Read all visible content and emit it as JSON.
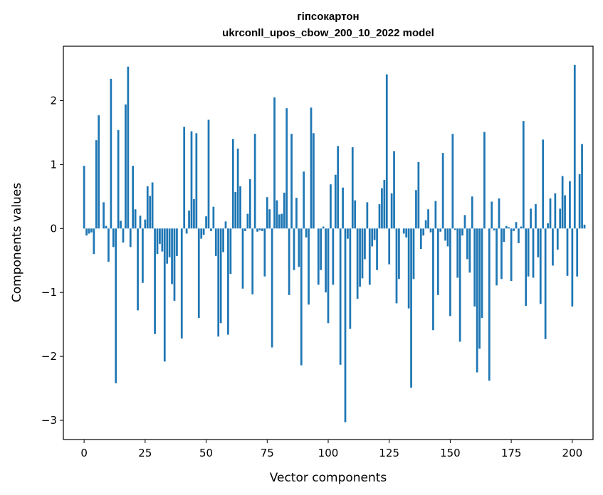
{
  "chart_data": {
    "type": "bar",
    "title": "гіпсокартон",
    "subtitle": "ukrconll_upos_cbow_200_10_2022 model",
    "xlabel": "Vector components",
    "ylabel": "Components values",
    "xlim": [
      -8.5,
      208.5
    ],
    "ylim": [
      -3.3,
      2.85
    ],
    "xticks": [
      0,
      25,
      50,
      75,
      100,
      125,
      150,
      175,
      200
    ],
    "yticks": [
      -3,
      -2,
      -1,
      0,
      1,
      2
    ],
    "ytick_labels": [
      "−3",
      "−2",
      "−1",
      "0",
      "1",
      "2"
    ],
    "grid": false,
    "color": "#1f77b4",
    "values": [
      0.98,
      -0.11,
      -0.08,
      -0.06,
      -0.4,
      1.38,
      1.77,
      0.0,
      0.41,
      0.04,
      -0.52,
      2.34,
      -0.29,
      -2.42,
      1.54,
      0.12,
      -0.22,
      1.94,
      2.53,
      -0.29,
      0.98,
      0.3,
      -1.28,
      0.2,
      -0.85,
      0.14,
      0.66,
      0.51,
      0.72,
      -1.65,
      -0.4,
      -0.24,
      -0.36,
      -2.08,
      -0.55,
      -0.45,
      -0.87,
      -1.13,
      -0.43,
      0.0,
      -1.72,
      1.59,
      -0.08,
      0.28,
      1.52,
      0.46,
      1.49,
      -1.4,
      -0.16,
      -0.1,
      0.19,
      1.7,
      -0.04,
      0.34,
      -0.43,
      -1.69,
      -1.48,
      -0.37,
      0.11,
      -1.66,
      -0.71,
      1.4,
      0.57,
      1.25,
      0.66,
      -0.94,
      -0.04,
      0.23,
      0.77,
      -1.03,
      1.48,
      -0.05,
      -0.03,
      -0.04,
      -0.75,
      0.49,
      0.3,
      -1.86,
      2.05,
      0.44,
      0.22,
      0.23,
      0.56,
      1.88,
      -1.04,
      1.48,
      -0.65,
      0.48,
      -0.6,
      -2.14,
      0.89,
      -0.14,
      -1.19,
      1.89,
      1.49,
      0.0,
      -0.88,
      -0.65,
      0.03,
      -1.0,
      -1.48,
      0.69,
      -0.88,
      0.84,
      1.29,
      -2.13,
      0.64,
      -3.03,
      -0.16,
      -1.57,
      1.27,
      0.44,
      -1.1,
      -0.91,
      -0.78,
      -0.48,
      0.41,
      -0.88,
      -0.28,
      -0.18,
      -0.65,
      0.38,
      0.63,
      0.76,
      2.41,
      -0.56,
      0.55,
      1.21,
      -1.17,
      -0.79,
      0.0,
      -0.08,
      -0.14,
      -1.25,
      -2.49,
      -0.79,
      0.6,
      1.04,
      -0.32,
      -0.11,
      0.13,
      0.3,
      -0.06,
      -1.59,
      0.43,
      -1.04,
      -0.05,
      1.18,
      -0.19,
      -0.28,
      -1.37,
      1.48,
      -0.02,
      -0.77,
      -1.77,
      -0.11,
      0.21,
      -0.48,
      -0.69,
      0.5,
      -1.22,
      -2.25,
      -1.88,
      -1.4,
      1.51,
      0.0,
      -2.38,
      0.42,
      -0.03,
      -0.89,
      0.47,
      -0.79,
      -0.21,
      0.04,
      0.02,
      -0.82,
      -0.04,
      0.1,
      -0.23,
      0.03,
      1.68,
      -1.21,
      -0.75,
      0.31,
      -0.77,
      0.38,
      -0.45,
      -1.18,
      1.39,
      -1.73,
      0.08,
      0.47,
      -0.58,
      0.55,
      -0.33,
      0.31,
      0.82,
      0.52,
      -0.74,
      0.74,
      -1.22,
      2.56,
      -0.75,
      0.85,
      1.32,
      0.06
    ]
  }
}
